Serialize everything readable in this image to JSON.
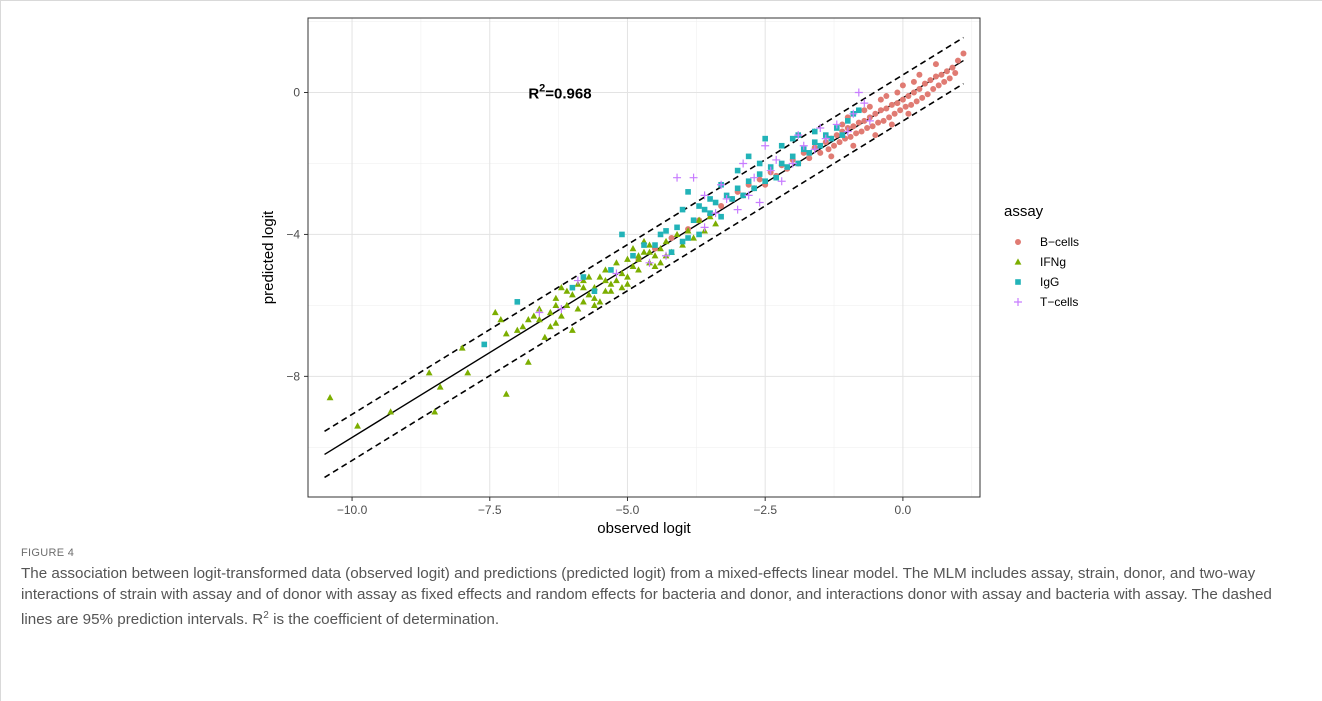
{
  "figure": {
    "label": "FIGURE 4",
    "caption": {
      "part1": "The association between logit-transformed data (observed logit) and predictions (predicted logit) from a mixed-effects linear model. The MLM includes assay, strain, donor, and two-way interactions of strain with assay and of donor with assay as fixed effects and random effects for bacteria and donor, and interactions donor with assay and bacteria with assay. The dashed lines are 95% prediction intervals. R",
      "sup": "2",
      "part2": " is the coefficient of determination."
    }
  },
  "chart_data": {
    "type": "scatter",
    "xlabel": "observed logit",
    "ylabel": "predicted logit",
    "xlim": [
      -10.8,
      1.4
    ],
    "ylim": [
      -11.4,
      2.1
    ],
    "xticks": [
      -10,
      -7.5,
      -5,
      -2.5,
      0
    ],
    "xtick_labels": [
      "−10.0",
      "−7.5",
      "−5.0",
      "−2.5",
      "0.0"
    ],
    "yticks": [
      -8,
      -4,
      0
    ],
    "ytick_labels": [
      "−8",
      "−4",
      "0"
    ],
    "grid": true,
    "annotation": {
      "base": "R",
      "sup": "2",
      "rest": "=0.968",
      "x": -6.8,
      "y": 0
    },
    "fit_line": {
      "x": [
        -10.5,
        1.1
      ],
      "y": [
        -10.2,
        0.9
      ]
    },
    "pred_upper": {
      "x": [
        -10.5,
        1.1
      ],
      "y": [
        -9.55,
        1.55
      ]
    },
    "pred_lower": {
      "x": [
        -10.5,
        1.1
      ],
      "y": [
        -10.85,
        0.25
      ]
    },
    "legend": {
      "title": "assay",
      "position": "right"
    },
    "series": [
      {
        "name": "B−cells",
        "marker": "circle",
        "color": "#E07B73",
        "points": [
          [
            1.1,
            1.1
          ],
          [
            1.0,
            0.9
          ],
          [
            0.95,
            0.55
          ],
          [
            0.9,
            0.7
          ],
          [
            0.85,
            0.4
          ],
          [
            0.8,
            0.6
          ],
          [
            0.75,
            0.3
          ],
          [
            0.7,
            0.5
          ],
          [
            0.65,
            0.2
          ],
          [
            0.6,
            0.45
          ],
          [
            0.55,
            0.1
          ],
          [
            0.5,
            0.35
          ],
          [
            0.45,
            -0.05
          ],
          [
            0.4,
            0.25
          ],
          [
            0.35,
            -0.15
          ],
          [
            0.3,
            0.1
          ],
          [
            0.25,
            -0.25
          ],
          [
            0.2,
            0.0
          ],
          [
            0.15,
            -0.35
          ],
          [
            0.1,
            -0.1
          ],
          [
            0.05,
            -0.4
          ],
          [
            0.0,
            -0.2
          ],
          [
            -0.05,
            -0.5
          ],
          [
            -0.1,
            -0.3
          ],
          [
            -0.15,
            -0.6
          ],
          [
            -0.2,
            -0.35
          ],
          [
            -0.25,
            -0.7
          ],
          [
            -0.3,
            -0.45
          ],
          [
            -0.35,
            -0.8
          ],
          [
            -0.4,
            -0.5
          ],
          [
            -0.45,
            -0.85
          ],
          [
            -0.5,
            -0.6
          ],
          [
            -0.55,
            -0.95
          ],
          [
            -0.6,
            -0.7
          ],
          [
            -0.65,
            -1.0
          ],
          [
            -0.7,
            -0.8
          ],
          [
            -0.75,
            -1.1
          ],
          [
            -0.8,
            -0.85
          ],
          [
            -0.85,
            -1.15
          ],
          [
            -0.9,
            -0.95
          ],
          [
            -0.95,
            -1.25
          ],
          [
            -1.0,
            -1.0
          ],
          [
            -1.05,
            -1.3
          ],
          [
            -1.1,
            -1.1
          ],
          [
            -1.15,
            -1.4
          ],
          [
            -1.2,
            -1.2
          ],
          [
            -1.25,
            -1.5
          ],
          [
            -1.3,
            -1.3
          ],
          [
            -1.35,
            -1.6
          ],
          [
            -1.4,
            -1.4
          ],
          [
            -1.5,
            -1.7
          ],
          [
            -1.6,
            -1.55
          ],
          [
            -1.7,
            -1.85
          ],
          [
            -1.8,
            -1.7
          ],
          [
            -1.9,
            -2.0
          ],
          [
            -2.0,
            -1.9
          ],
          [
            -2.1,
            -2.15
          ],
          [
            -2.2,
            -2.05
          ],
          [
            -2.3,
            -2.35
          ],
          [
            -2.4,
            -2.25
          ],
          [
            -2.5,
            -2.6
          ],
          [
            -2.6,
            -2.45
          ],
          [
            -2.7,
            -2.7
          ],
          [
            -2.8,
            -2.6
          ],
          [
            -2.9,
            -2.9
          ],
          [
            -3.0,
            -2.8
          ],
          [
            -3.1,
            -3.0
          ],
          [
            -3.3,
            -3.2
          ],
          [
            -3.5,
            -3.45
          ],
          [
            -3.7,
            -3.6
          ],
          [
            -3.9,
            -3.85
          ],
          [
            -4.2,
            -4.1
          ],
          [
            -4.5,
            -4.4
          ],
          [
            -4.8,
            -4.7
          ],
          [
            0.6,
            0.8
          ],
          [
            0.3,
            0.5
          ],
          [
            0.0,
            0.2
          ],
          [
            -0.3,
            -0.1
          ],
          [
            -0.6,
            -0.4
          ],
          [
            -1.0,
            -0.7
          ],
          [
            -0.2,
            -0.9
          ],
          [
            0.1,
            -0.6
          ],
          [
            -0.5,
            -1.2
          ],
          [
            -0.9,
            -1.5
          ],
          [
            -1.3,
            -1.8
          ],
          [
            0.2,
            0.3
          ],
          [
            -0.1,
            0.0
          ],
          [
            -0.4,
            -0.2
          ],
          [
            -0.7,
            -0.5
          ],
          [
            -1.1,
            -0.9
          ]
        ]
      },
      {
        "name": "IFNg",
        "marker": "triangle",
        "color": "#7CAE00",
        "points": [
          [
            -10.4,
            -8.6
          ],
          [
            -9.9,
            -9.4
          ],
          [
            -9.3,
            -9.0
          ],
          [
            -8.6,
            -7.9
          ],
          [
            -8.5,
            -9.0
          ],
          [
            -8.4,
            -8.3
          ],
          [
            -8.0,
            -7.2
          ],
          [
            -7.9,
            -7.9
          ],
          [
            -7.4,
            -6.2
          ],
          [
            -7.3,
            -6.4
          ],
          [
            -7.2,
            -8.5
          ],
          [
            -7.2,
            -6.8
          ],
          [
            -7.0,
            -6.7
          ],
          [
            -6.9,
            -6.6
          ],
          [
            -6.8,
            -6.4
          ],
          [
            -6.8,
            -7.6
          ],
          [
            -6.7,
            -6.3
          ],
          [
            -6.6,
            -6.1
          ],
          [
            -6.5,
            -6.9
          ],
          [
            -6.4,
            -6.2
          ],
          [
            -6.3,
            -5.8
          ],
          [
            -6.3,
            -6.5
          ],
          [
            -6.2,
            -5.5
          ],
          [
            -6.1,
            -6.0
          ],
          [
            -6.0,
            -5.7
          ],
          [
            -6.0,
            -6.7
          ],
          [
            -5.9,
            -5.4
          ],
          [
            -5.8,
            -5.9
          ],
          [
            -5.8,
            -5.3
          ],
          [
            -5.7,
            -5.7
          ],
          [
            -5.6,
            -5.5
          ],
          [
            -5.6,
            -6.0
          ],
          [
            -5.5,
            -5.2
          ],
          [
            -5.4,
            -5.6
          ],
          [
            -5.4,
            -5.0
          ],
          [
            -5.3,
            -5.4
          ],
          [
            -5.2,
            -4.8
          ],
          [
            -5.2,
            -5.3
          ],
          [
            -5.1,
            -5.1
          ],
          [
            -5.0,
            -4.7
          ],
          [
            -5.0,
            -5.2
          ],
          [
            -4.9,
            -4.9
          ],
          [
            -4.8,
            -4.6
          ],
          [
            -4.8,
            -5.0
          ],
          [
            -4.7,
            -4.5
          ],
          [
            -4.6,
            -4.8
          ],
          [
            -4.6,
            -4.3
          ],
          [
            -4.5,
            -4.6
          ],
          [
            -4.4,
            -4.4
          ],
          [
            -4.4,
            -4.8
          ],
          [
            -4.3,
            -4.2
          ],
          [
            -4.2,
            -4.5
          ],
          [
            -4.1,
            -4.0
          ],
          [
            -4.0,
            -4.3
          ],
          [
            -3.9,
            -3.9
          ],
          [
            -3.8,
            -4.1
          ],
          [
            -3.7,
            -3.6
          ],
          [
            -3.6,
            -3.9
          ],
          [
            -3.5,
            -3.5
          ],
          [
            -3.4,
            -3.7
          ],
          [
            -5.5,
            -5.9
          ],
          [
            -6.2,
            -6.3
          ],
          [
            -6.6,
            -6.4
          ],
          [
            -5.3,
            -5.6
          ],
          [
            -4.9,
            -4.4
          ],
          [
            -5.7,
            -5.2
          ],
          [
            -6.1,
            -5.6
          ],
          [
            -4.7,
            -4.2
          ],
          [
            -5.9,
            -6.1
          ],
          [
            -6.4,
            -6.6
          ],
          [
            -5.1,
            -5.5
          ],
          [
            -4.5,
            -4.9
          ],
          [
            -5.8,
            -5.5
          ],
          [
            -6.3,
            -6.0
          ],
          [
            -5.4,
            -5.3
          ],
          [
            -4.8,
            -4.7
          ],
          [
            -5.0,
            -5.4
          ],
          [
            -5.6,
            -5.8
          ],
          [
            -4.6,
            -4.5
          ],
          [
            -4.3,
            -4.6
          ]
        ]
      },
      {
        "name": "IgG",
        "marker": "square",
        "color": "#22B3B8",
        "points": [
          [
            -7.6,
            -7.1
          ],
          [
            -7.0,
            -5.9
          ],
          [
            -6.0,
            -5.5
          ],
          [
            -5.8,
            -5.2
          ],
          [
            -5.6,
            -5.6
          ],
          [
            -5.3,
            -5.0
          ],
          [
            -5.1,
            -4.0
          ],
          [
            -4.9,
            -4.6
          ],
          [
            -4.7,
            -4.3
          ],
          [
            -4.5,
            -4.3
          ],
          [
            -4.4,
            -4.0
          ],
          [
            -4.2,
            -4.5
          ],
          [
            -4.1,
            -3.8
          ],
          [
            -4.0,
            -4.2
          ],
          [
            -3.9,
            -2.8
          ],
          [
            -3.8,
            -3.6
          ],
          [
            -3.7,
            -4.0
          ],
          [
            -3.6,
            -3.3
          ],
          [
            -3.5,
            -3.4
          ],
          [
            -3.4,
            -3.1
          ],
          [
            -3.3,
            -3.5
          ],
          [
            -3.2,
            -2.9
          ],
          [
            -3.1,
            -3.0
          ],
          [
            -3.0,
            -2.7
          ],
          [
            -2.9,
            -2.9
          ],
          [
            -2.8,
            -2.5
          ],
          [
            -2.7,
            -2.7
          ],
          [
            -2.6,
            -2.3
          ],
          [
            -2.5,
            -2.5
          ],
          [
            -2.4,
            -2.1
          ],
          [
            -2.3,
            -2.4
          ],
          [
            -2.2,
            -2.0
          ],
          [
            -2.1,
            -2.1
          ],
          [
            -2.0,
            -1.8
          ],
          [
            -1.9,
            -2.0
          ],
          [
            -1.8,
            -1.6
          ],
          [
            -1.7,
            -1.7
          ],
          [
            -1.6,
            -1.4
          ],
          [
            -1.5,
            -1.5
          ],
          [
            -1.4,
            -1.2
          ],
          [
            -1.3,
            -1.3
          ],
          [
            -1.2,
            -1.0
          ],
          [
            -1.1,
            -1.2
          ],
          [
            -1.0,
            -0.8
          ],
          [
            -0.9,
            -0.6
          ],
          [
            -0.8,
            -0.5
          ],
          [
            -2.5,
            -1.3
          ],
          [
            -3.0,
            -2.2
          ],
          [
            -3.5,
            -3.0
          ],
          [
            -4.0,
            -3.3
          ],
          [
            -2.8,
            -1.8
          ],
          [
            -2.2,
            -1.5
          ],
          [
            -1.9,
            -1.2
          ],
          [
            -3.3,
            -2.6
          ],
          [
            -3.7,
            -3.2
          ],
          [
            -4.3,
            -3.9
          ],
          [
            -2.6,
            -2.0
          ],
          [
            -2.0,
            -1.3
          ],
          [
            -1.6,
            -1.1
          ],
          [
            -3.9,
            -4.1
          ]
        ]
      },
      {
        "name": "T−cells",
        "marker": "plus",
        "color": "#C77CFF",
        "points": [
          [
            -6.6,
            -6.2
          ],
          [
            -6.2,
            -6.1
          ],
          [
            -5.9,
            -5.3
          ],
          [
            -5.2,
            -5.1
          ],
          [
            -4.6,
            -4.8
          ],
          [
            -4.3,
            -4.6
          ],
          [
            -4.1,
            -2.4
          ],
          [
            -3.8,
            -2.4
          ],
          [
            -3.6,
            -2.9
          ],
          [
            -3.4,
            -3.4
          ],
          [
            -3.2,
            -3.0
          ],
          [
            -3.0,
            -3.3
          ],
          [
            -2.8,
            -2.9
          ],
          [
            -2.6,
            -3.1
          ],
          [
            -2.4,
            -2.2
          ],
          [
            -2.2,
            -2.5
          ],
          [
            -2.0,
            -2.0
          ],
          [
            -1.8,
            -1.5
          ],
          [
            -1.6,
            -1.6
          ],
          [
            -1.4,
            -1.3
          ],
          [
            -1.2,
            -0.9
          ],
          [
            -1.0,
            -1.1
          ],
          [
            -0.9,
            -0.6
          ],
          [
            -0.8,
            0.0
          ],
          [
            -0.7,
            -0.3
          ],
          [
            -0.6,
            -0.8
          ],
          [
            -2.5,
            -1.5
          ],
          [
            -2.9,
            -2.0
          ],
          [
            -3.3,
            -2.6
          ],
          [
            -1.5,
            -1.0
          ],
          [
            -1.9,
            -1.2
          ],
          [
            -2.3,
            -1.9
          ],
          [
            -3.6,
            -3.8
          ],
          [
            -2.7,
            -2.4
          ]
        ]
      }
    ]
  }
}
